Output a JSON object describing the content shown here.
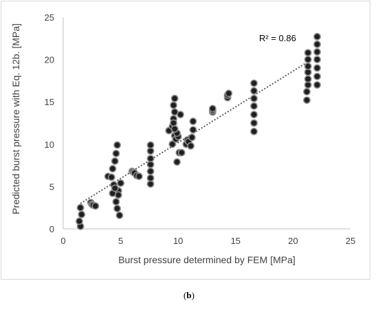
{
  "chart_data": {
    "type": "scatter",
    "xlabel": "Burst pressure determined by FEM [MPa]",
    "ylabel": "Predicted burst pressure with Eq. 12b. [MPa]",
    "xlim": [
      0,
      25
    ],
    "ylim": [
      0,
      25
    ],
    "x_ticks": [
      "0",
      "5",
      "10",
      "15",
      "20",
      "25"
    ],
    "y_ticks": [
      "0",
      "5",
      "10",
      "15",
      "20",
      "25"
    ],
    "grid": false,
    "annotation": "R² = 0.86",
    "trendline": {
      "type": "linear",
      "x": [
        1.5,
        21.5
      ],
      "y": [
        3.0,
        19.9
      ],
      "style": "dotted"
    },
    "points": [
      [
        1.5,
        0.3
      ],
      [
        1.4,
        0.9
      ],
      [
        1.6,
        1.7
      ],
      [
        1.5,
        2.5
      ],
      [
        2.4,
        3.1
      ],
      [
        2.5,
        2.9
      ],
      [
        2.6,
        2.8
      ],
      [
        2.8,
        2.7
      ],
      [
        3.9,
        6.2
      ],
      [
        4.2,
        6.1
      ],
      [
        4.3,
        7.1
      ],
      [
        4.3,
        4.2
      ],
      [
        4.4,
        5.2
      ],
      [
        4.5,
        8.0
      ],
      [
        4.6,
        8.9
      ],
      [
        4.7,
        9.9
      ],
      [
        4.6,
        3.2
      ],
      [
        4.7,
        2.4
      ],
      [
        4.9,
        1.6
      ],
      [
        4.8,
        4.5
      ],
      [
        5.0,
        5.4
      ],
      [
        4.8,
        4.0
      ],
      [
        4.5,
        4.8
      ],
      [
        6.0,
        6.8
      ],
      [
        6.1,
        6.7
      ],
      [
        6.2,
        6.6
      ],
      [
        6.4,
        6.3
      ],
      [
        6.6,
        6.2
      ],
      [
        7.6,
        5.3
      ],
      [
        7.6,
        6.0
      ],
      [
        7.6,
        6.8
      ],
      [
        7.6,
        7.6
      ],
      [
        7.6,
        8.3
      ],
      [
        7.6,
        9.2
      ],
      [
        7.6,
        9.9
      ],
      [
        9.2,
        11.6
      ],
      [
        9.5,
        12.1
      ],
      [
        9.6,
        13.0
      ],
      [
        9.7,
        13.8
      ],
      [
        9.6,
        14.6
      ],
      [
        9.7,
        15.4
      ],
      [
        9.6,
        12.5
      ],
      [
        9.7,
        11.0
      ],
      [
        9.5,
        10.0
      ],
      [
        9.8,
        10.6
      ],
      [
        9.9,
        7.9
      ],
      [
        10.0,
        10.9
      ],
      [
        10.1,
        9.0
      ],
      [
        10.3,
        9.0
      ],
      [
        10.2,
        13.5
      ],
      [
        9.9,
        11.3
      ],
      [
        9.7,
        11.8
      ],
      [
        10.7,
        10.0
      ],
      [
        10.8,
        10.5
      ],
      [
        10.9,
        10.3
      ],
      [
        11.1,
        9.8
      ],
      [
        11.2,
        10.8
      ],
      [
        11.3,
        11.7
      ],
      [
        11.3,
        12.7
      ],
      [
        13.0,
        13.8
      ],
      [
        13.0,
        14.0
      ],
      [
        13.0,
        14.2
      ],
      [
        14.3,
        15.5
      ],
      [
        14.3,
        15.8
      ],
      [
        14.4,
        16.0
      ],
      [
        16.6,
        11.5
      ],
      [
        16.6,
        12.5
      ],
      [
        16.6,
        13.5
      ],
      [
        16.6,
        14.5
      ],
      [
        16.6,
        15.4
      ],
      [
        16.6,
        16.3
      ],
      [
        16.6,
        17.2
      ],
      [
        21.2,
        15.2
      ],
      [
        21.2,
        16.2
      ],
      [
        21.3,
        17.0
      ],
      [
        21.3,
        17.7
      ],
      [
        21.3,
        18.5
      ],
      [
        21.3,
        19.2
      ],
      [
        21.3,
        20.0
      ],
      [
        21.3,
        20.8
      ],
      [
        22.1,
        17.0
      ],
      [
        22.1,
        18.0
      ],
      [
        22.1,
        19.0
      ],
      [
        22.1,
        20.0
      ],
      [
        22.1,
        20.9
      ],
      [
        22.1,
        21.8
      ],
      [
        22.1,
        22.7
      ]
    ],
    "marker_color": "#1f1f1f",
    "marker_edge_color": "#8c8c8c",
    "axis_color": "#bfbfbf",
    "trendline_color": "#595959"
  },
  "caption": {
    "open": "(",
    "letter": "b",
    "close": ")"
  }
}
